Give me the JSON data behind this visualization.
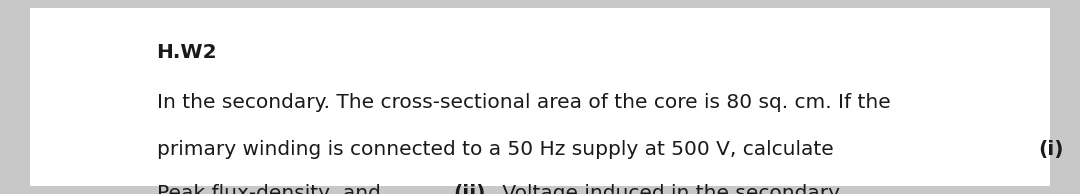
{
  "background_color": "#c8c8c8",
  "text_bg_color": "#ffffff",
  "title": "H.W2",
  "line1": "In the secondary. The cross-sectional area of the core is 80 sq. cm. If the",
  "line2_normal": "primary winding is connected to a 50 Hz supply at 500 V, calculate ",
  "line2_bold": "(i)",
  "line3_normal1": "Peak flux-density, and ",
  "line3_bold": "(ii)",
  "line3_normal2": " Voltage induced in the secondary.",
  "font_size_title": 14.5,
  "font_size_body": 14.5,
  "text_color": "#1a1a1a",
  "fig_width": 10.8,
  "fig_height": 1.94
}
